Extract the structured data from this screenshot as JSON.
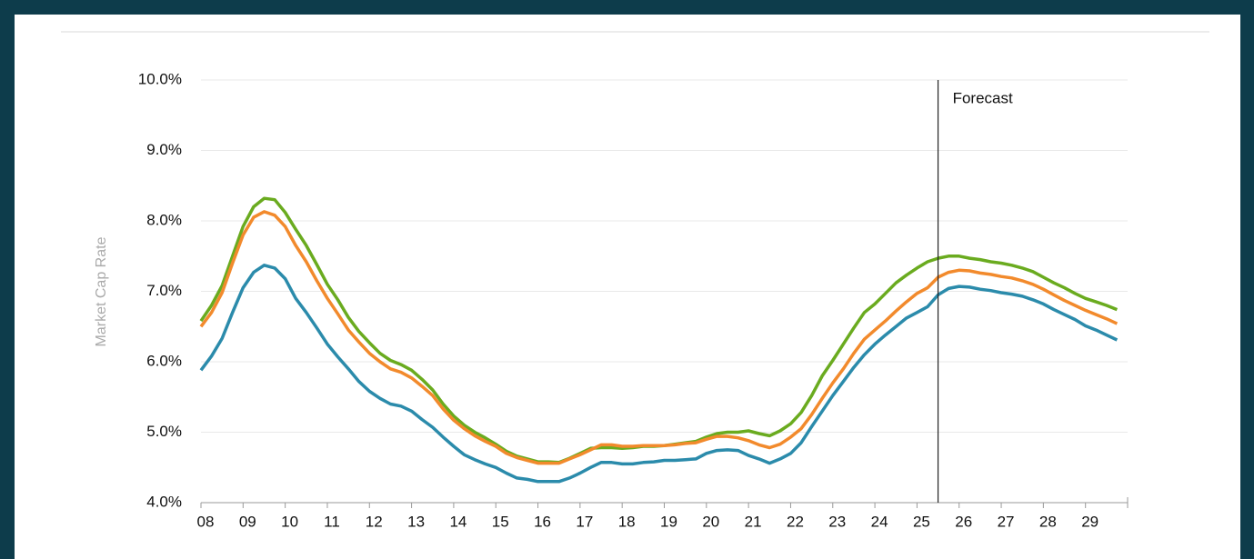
{
  "chart_data": {
    "type": "line",
    "ylabel": "Market Cap Rate",
    "x": [
      2008,
      2008.25,
      2008.5,
      2008.75,
      2009,
      2009.25,
      2009.5,
      2009.75,
      2010,
      2010.25,
      2010.5,
      2010.75,
      2011,
      2011.25,
      2011.5,
      2011.75,
      2012,
      2012.25,
      2012.5,
      2012.75,
      2013,
      2013.25,
      2013.5,
      2013.75,
      2014,
      2014.25,
      2014.5,
      2014.75,
      2015,
      2015.25,
      2015.5,
      2015.75,
      2016,
      2016.25,
      2016.5,
      2016.75,
      2017,
      2017.25,
      2017.5,
      2017.75,
      2018,
      2018.25,
      2018.5,
      2018.75,
      2019,
      2019.25,
      2019.5,
      2019.75,
      2020,
      2020.25,
      2020.5,
      2020.75,
      2021,
      2021.25,
      2021.5,
      2021.75,
      2022,
      2022.25,
      2022.5,
      2022.75,
      2023,
      2023.25,
      2023.5,
      2023.75,
      2024,
      2024.25,
      2024.5,
      2024.75,
      2025,
      2025.25,
      2025.5,
      2025.75,
      2026,
      2026.25,
      2026.5,
      2026.75,
      2027,
      2027.25,
      2027.5,
      2027.75,
      2028,
      2028.25,
      2028.5,
      2028.75,
      2029,
      2029.25,
      2029.5,
      2029.75
    ],
    "series": [
      {
        "color": "#6aab1f",
        "values": [
          6.58,
          6.8,
          7.08,
          7.5,
          7.92,
          8.2,
          8.32,
          8.3,
          8.12,
          7.88,
          7.65,
          7.38,
          7.1,
          6.88,
          6.63,
          6.43,
          6.27,
          6.12,
          6.02,
          5.96,
          5.88,
          5.75,
          5.6,
          5.4,
          5.23,
          5.1,
          5.0,
          4.92,
          4.83,
          4.73,
          4.66,
          4.62,
          4.58,
          4.58,
          4.57,
          4.63,
          4.7,
          4.77,
          4.78,
          4.78,
          4.77,
          4.78,
          4.8,
          4.8,
          4.81,
          4.83,
          4.85,
          4.87,
          4.93,
          4.98,
          5.0,
          5.0,
          5.02,
          4.98,
          4.95,
          5.02,
          5.12,
          5.28,
          5.52,
          5.8,
          6.02,
          6.25,
          6.48,
          6.7,
          6.82,
          6.97,
          7.12,
          7.23,
          7.33,
          7.42,
          7.47,
          7.5,
          7.5,
          7.47,
          7.45,
          7.42,
          7.4,
          7.37,
          7.33,
          7.28,
          7.2,
          7.12,
          7.05,
          6.97,
          6.9,
          6.85,
          6.8,
          6.74
        ]
      },
      {
        "color": "#f28a2c",
        "values": [
          6.5,
          6.7,
          6.98,
          7.4,
          7.8,
          8.05,
          8.13,
          8.08,
          7.92,
          7.65,
          7.42,
          7.15,
          6.9,
          6.68,
          6.45,
          6.28,
          6.12,
          6.0,
          5.9,
          5.85,
          5.77,
          5.65,
          5.52,
          5.33,
          5.17,
          5.05,
          4.95,
          4.87,
          4.8,
          4.7,
          4.64,
          4.6,
          4.56,
          4.56,
          4.56,
          4.62,
          4.68,
          4.75,
          4.82,
          4.82,
          4.8,
          4.8,
          4.81,
          4.81,
          4.81,
          4.82,
          4.84,
          4.85,
          4.9,
          4.94,
          4.94,
          4.92,
          4.88,
          4.82,
          4.78,
          4.83,
          4.93,
          5.05,
          5.25,
          5.48,
          5.7,
          5.9,
          6.12,
          6.32,
          6.45,
          6.58,
          6.72,
          6.85,
          6.97,
          7.05,
          7.2,
          7.27,
          7.3,
          7.29,
          7.26,
          7.24,
          7.21,
          7.19,
          7.15,
          7.1,
          7.03,
          6.95,
          6.87,
          6.8,
          6.73,
          6.67,
          6.61,
          6.54
        ]
      },
      {
        "color": "#2b8bab",
        "values": [
          5.88,
          6.08,
          6.33,
          6.7,
          7.05,
          7.27,
          7.37,
          7.33,
          7.18,
          6.9,
          6.7,
          6.48,
          6.25,
          6.07,
          5.9,
          5.72,
          5.58,
          5.48,
          5.4,
          5.37,
          5.3,
          5.18,
          5.07,
          4.93,
          4.8,
          4.68,
          4.61,
          4.55,
          4.5,
          4.42,
          4.35,
          4.33,
          4.3,
          4.3,
          4.3,
          4.35,
          4.42,
          4.5,
          4.57,
          4.57,
          4.55,
          4.55,
          4.57,
          4.58,
          4.6,
          4.6,
          4.61,
          4.62,
          4.7,
          4.74,
          4.75,
          4.74,
          4.67,
          4.62,
          4.56,
          4.62,
          4.7,
          4.85,
          5.08,
          5.3,
          5.52,
          5.72,
          5.92,
          6.1,
          6.25,
          6.38,
          6.5,
          6.62,
          6.7,
          6.78,
          6.95,
          7.04,
          7.07,
          7.06,
          7.03,
          7.01,
          6.98,
          6.96,
          6.93,
          6.88,
          6.82,
          6.74,
          6.67,
          6.6,
          6.51,
          6.45,
          6.38,
          6.31
        ]
      }
    ],
    "xlim": [
      2008,
      2030
    ],
    "xticks": [
      {
        "value": 2008,
        "label": "08"
      },
      {
        "value": 2009,
        "label": "09"
      },
      {
        "value": 2010,
        "label": "10"
      },
      {
        "value": 2011,
        "label": "11"
      },
      {
        "value": 2012,
        "label": "12"
      },
      {
        "value": 2013,
        "label": "13"
      },
      {
        "value": 2014,
        "label": "14"
      },
      {
        "value": 2015,
        "label": "15"
      },
      {
        "value": 2016,
        "label": "16"
      },
      {
        "value": 2017,
        "label": "17"
      },
      {
        "value": 2018,
        "label": "18"
      },
      {
        "value": 2019,
        "label": "19"
      },
      {
        "value": 2020,
        "label": "20"
      },
      {
        "value": 2021,
        "label": "21"
      },
      {
        "value": 2022,
        "label": "22"
      },
      {
        "value": 2023,
        "label": "23"
      },
      {
        "value": 2024,
        "label": "24"
      },
      {
        "value": 2025,
        "label": "25"
      },
      {
        "value": 2026,
        "label": "26"
      },
      {
        "value": 2027,
        "label": "27"
      },
      {
        "value": 2028,
        "label": "28"
      },
      {
        "value": 2029,
        "label": "29"
      }
    ],
    "ylim": [
      4,
      10
    ],
    "yticks": [
      {
        "value": 4,
        "label": "4.0%"
      },
      {
        "value": 5,
        "label": "5.0%"
      },
      {
        "value": 6,
        "label": "6.0%"
      },
      {
        "value": 7,
        "label": "7.0%"
      },
      {
        "value": 8,
        "label": "8.0%"
      },
      {
        "value": 9,
        "label": "9.0%"
      },
      {
        "value": 10,
        "label": "10.0%"
      }
    ],
    "grid": true,
    "annotation": {
      "text": "Forecast",
      "x": 2025.5
    }
  }
}
